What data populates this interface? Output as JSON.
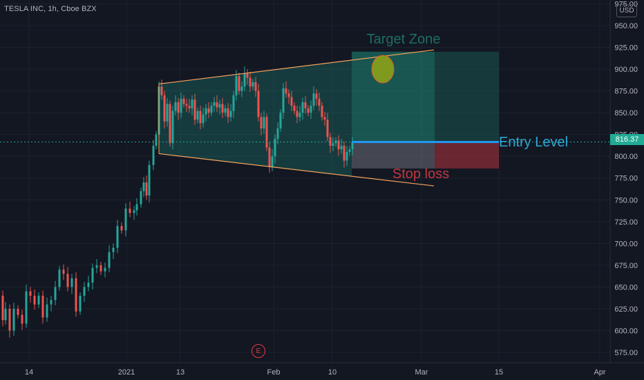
{
  "header": {
    "title": "TESLA INC, 1h, Cboe BZX",
    "currency_button": "USD"
  },
  "price_tag": {
    "value": "816.37",
    "color": "#22ab94"
  },
  "earnings_marker": {
    "label": "E",
    "color": "#f23645"
  },
  "annotations": {
    "target_zone": "Target Zone",
    "entry_level": "Entry Level",
    "stop_loss": "Stop loss"
  },
  "colors": {
    "background": "#131722",
    "up_candle": "#26a69a",
    "down_candle": "#ef5350",
    "channel_lines": "#f7a35c",
    "entry_line": "#2196f3",
    "target_fill": "#1a8a78",
    "stop_fill": "#b2343f"
  },
  "chart_data": {
    "type": "candlestick",
    "title": "TESLA INC, 1h, Cboe BZX",
    "y_axis": {
      "range": [
        565,
        978
      ],
      "ticks": [
        575,
        600,
        625,
        650,
        675,
        700,
        725,
        750,
        775,
        800,
        825,
        850,
        875,
        900,
        925,
        950,
        975
      ],
      "tick_labels": [
        "575.00",
        "600.00",
        "625.00",
        "650.00",
        "675.00",
        "700.00",
        "725.00",
        "750.00",
        "775.00",
        "800.00",
        "825.00",
        "850.00",
        "875.00",
        "900.00",
        "925.00",
        "950.00",
        "975.00"
      ]
    },
    "x_axis": {
      "tick_labels": [
        "14",
        "2021",
        "13",
        "Feb",
        "10",
        "Mar",
        "15",
        "Apr"
      ]
    },
    "last_price": 816.37,
    "price_path": [
      [
        0,
        640
      ],
      [
        4,
        612
      ],
      [
        8,
        625
      ],
      [
        14,
        600
      ],
      [
        20,
        625
      ],
      [
        26,
        618
      ],
      [
        32,
        608
      ],
      [
        38,
        645
      ],
      [
        44,
        640
      ],
      [
        50,
        630
      ],
      [
        56,
        640
      ],
      [
        62,
        615
      ],
      [
        68,
        630
      ],
      [
        74,
        635
      ],
      [
        80,
        650
      ],
      [
        86,
        670
      ],
      [
        92,
        665
      ],
      [
        98,
        650
      ],
      [
        104,
        660
      ],
      [
        110,
        622
      ],
      [
        116,
        640
      ],
      [
        122,
        650
      ],
      [
        128,
        655
      ],
      [
        134,
        672
      ],
      [
        140,
        675
      ],
      [
        146,
        668
      ],
      [
        152,
        672
      ],
      [
        158,
        690
      ],
      [
        164,
        695
      ],
      [
        170,
        720
      ],
      [
        176,
        715
      ],
      [
        182,
        740
      ],
      [
        188,
        735
      ],
      [
        194,
        738
      ],
      [
        198,
        745
      ],
      [
        204,
        760
      ],
      [
        208,
        770
      ],
      [
        212,
        755
      ],
      [
        216,
        790
      ],
      [
        222,
        812
      ],
      [
        226,
        825
      ],
      [
        230,
        880
      ],
      [
        234,
        870
      ],
      [
        238,
        840
      ],
      [
        242,
        860
      ],
      [
        246,
        815
      ],
      [
        250,
        852
      ],
      [
        254,
        862
      ],
      [
        258,
        850
      ],
      [
        262,
        866
      ],
      [
        266,
        860
      ],
      [
        270,
        858
      ],
      [
        274,
        855
      ],
      [
        278,
        865
      ],
      [
        282,
        842
      ],
      [
        286,
        852
      ],
      [
        290,
        838
      ],
      [
        294,
        848
      ],
      [
        298,
        855
      ],
      [
        302,
        850
      ],
      [
        306,
        858
      ],
      [
        310,
        862
      ],
      [
        314,
        856
      ],
      [
        318,
        860
      ],
      [
        322,
        850
      ],
      [
        326,
        855
      ],
      [
        330,
        845
      ],
      [
        334,
        852
      ],
      [
        338,
        870
      ],
      [
        342,
        892
      ],
      [
        346,
        875
      ],
      [
        350,
        880
      ],
      [
        354,
        895
      ],
      [
        358,
        890
      ],
      [
        362,
        880
      ],
      [
        366,
        885
      ],
      [
        370,
        875
      ],
      [
        374,
        845
      ],
      [
        378,
        832
      ],
      [
        382,
        845
      ],
      [
        386,
        810
      ],
      [
        390,
        788
      ],
      [
        394,
        800
      ],
      [
        398,
        820
      ],
      [
        402,
        832
      ],
      [
        406,
        850
      ],
      [
        410,
        878
      ],
      [
        414,
        872
      ],
      [
        418,
        868
      ],
      [
        422,
        858
      ],
      [
        426,
        852
      ],
      [
        430,
        845
      ],
      [
        434,
        850
      ],
      [
        438,
        862
      ],
      [
        442,
        855
      ],
      [
        446,
        850
      ],
      [
        450,
        858
      ],
      [
        454,
        872
      ],
      [
        458,
        866
      ],
      [
        462,
        858
      ],
      [
        466,
        845
      ],
      [
        470,
        842
      ],
      [
        474,
        822
      ],
      [
        478,
        812
      ],
      [
        482,
        815
      ],
      [
        486,
        818
      ],
      [
        490,
        808
      ],
      [
        494,
        812
      ],
      [
        498,
        795
      ],
      [
        502,
        805
      ],
      [
        506,
        808
      ],
      [
        510,
        816
      ]
    ],
    "channel": {
      "upper": [
        [
          230,
          883
        ],
        [
          628,
          922
        ]
      ],
      "lower": [
        [
          230,
          803
        ],
        [
          628,
          766
        ]
      ]
    },
    "target_zone": {
      "label": "Target Zone",
      "top": 920,
      "bottom": 816
    },
    "entry_level": {
      "label": "Entry Level",
      "price": 816.37
    },
    "stop_loss": {
      "label": "Stop loss",
      "top": 816,
      "bottom": 786
    },
    "target_marker": {
      "price": 900
    }
  }
}
